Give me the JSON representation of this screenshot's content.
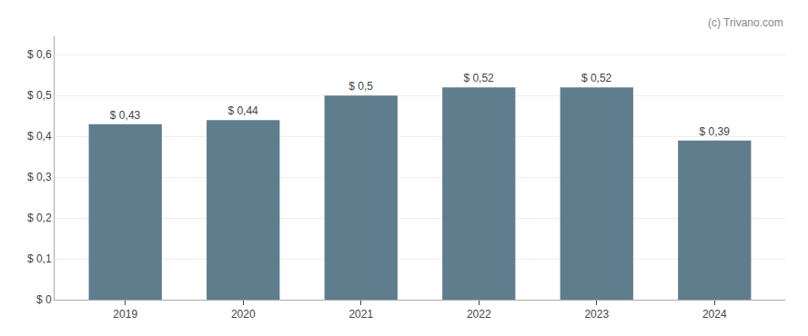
{
  "chart_data": {
    "type": "bar",
    "x": [
      2019,
      2020,
      2021,
      2022,
      2023,
      2024
    ],
    "values": [
      0.43,
      0.44,
      0.5,
      0.52,
      0.52,
      0.39
    ],
    "value_labels": [
      "$ 0,43",
      "$ 0,44",
      "$ 0,5",
      "$ 0,52",
      "$ 0,52",
      "$ 0,39"
    ],
    "data_labels": true,
    "color": "#5f7d8c",
    "xlim": [
      2018.4,
      2024.6
    ],
    "xticks": [
      2019,
      2020,
      2021,
      2022,
      2023,
      2024
    ],
    "ylim": [
      0,
      0.645
    ],
    "yticks": [
      {
        "value": 0,
        "label": "$ 0"
      },
      {
        "value": 0.1,
        "label": "$ 0,1"
      },
      {
        "value": 0.2,
        "label": "$ 0,2"
      },
      {
        "value": 0.3,
        "label": "$ 0,3"
      },
      {
        "value": 0.4,
        "label": "$ 0,4"
      },
      {
        "value": 0.5,
        "label": "$ 0,5"
      },
      {
        "value": 0.6,
        "label": "$ 0,6"
      }
    ],
    "grid": true,
    "annotations": [
      "(c) Trivano.com"
    ]
  }
}
